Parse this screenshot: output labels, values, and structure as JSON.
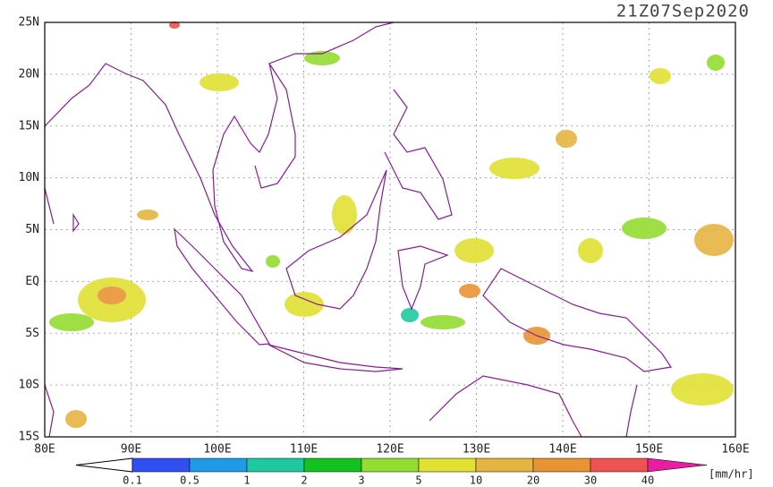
{
  "title": "21Z07Sep2020",
  "lat_labels": [
    "25N",
    "20N",
    "15N",
    "10N",
    "5N",
    "EQ",
    "5S",
    "10S",
    "15S"
  ],
  "lon_labels": [
    "80E",
    "90E",
    "100E",
    "110E",
    "120E",
    "130E",
    "140E",
    "150E",
    "160E"
  ],
  "colorbar": {
    "labels": [
      "0.1",
      "0.5",
      "1",
      "2",
      "3",
      "5",
      "10",
      "20",
      "30",
      "40"
    ],
    "colors": [
      "#2f4ff0",
      "#1e9ce8",
      "#1fc9a0",
      "#12c21e",
      "#93dc31",
      "#e1e134",
      "#e6b443",
      "#e99434",
      "#f05252",
      "#e81ea0"
    ],
    "unit": "[mm/hr]"
  }
}
